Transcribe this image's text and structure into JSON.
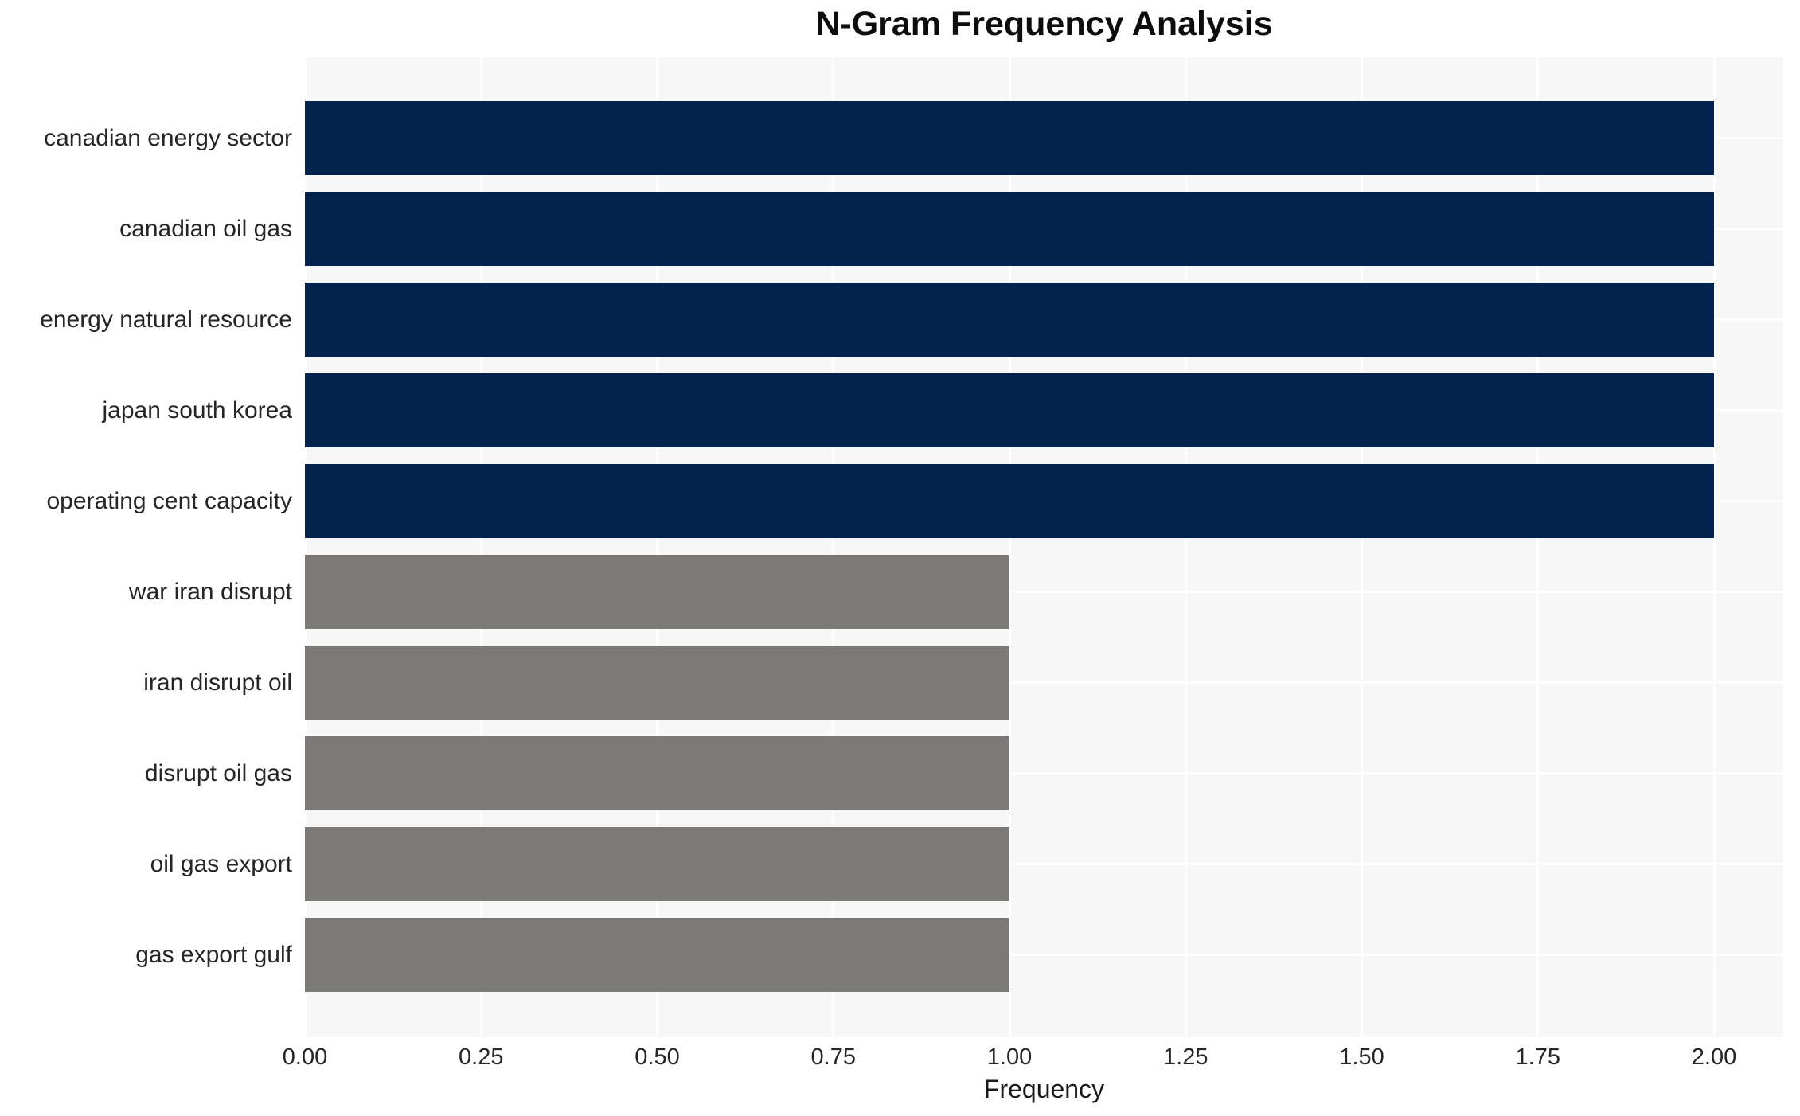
{
  "chart_data": {
    "type": "bar",
    "orientation": "horizontal",
    "title": "N-Gram Frequency Analysis",
    "xlabel": "Frequency",
    "ylabel": "",
    "categories": [
      "canadian energy sector",
      "canadian oil gas",
      "energy natural resource",
      "japan south korea",
      "operating cent capacity",
      "war iran disrupt",
      "iran disrupt oil",
      "disrupt oil gas",
      "oil gas export",
      "gas export gulf"
    ],
    "values": [
      2,
      2,
      2,
      2,
      2,
      1,
      1,
      1,
      1,
      1
    ],
    "bar_colors": [
      "#02234E",
      "#02234E",
      "#02234E",
      "#02234E",
      "#02234E",
      "#7B7A77",
      "#7B7A77",
      "#7B7A77",
      "#7B7A77",
      "#7B7A77"
    ],
    "xlim": [
      0,
      2.1
    ],
    "xticks": [
      {
        "label": "0.00",
        "value": 0.0
      },
      {
        "label": "0.25",
        "value": 0.25
      },
      {
        "label": "0.50",
        "value": 0.5
      },
      {
        "label": "0.75",
        "value": 0.75
      },
      {
        "label": "1.00",
        "value": 1.0
      },
      {
        "label": "1.25",
        "value": 1.25
      },
      {
        "label": "1.50",
        "value": 1.5
      },
      {
        "label": "1.75",
        "value": 1.75
      },
      {
        "label": "2.00",
        "value": 2.0
      }
    ],
    "grid": "on",
    "legend": "none",
    "colors": {
      "primary_bar": "#02234E",
      "secondary_bar": "#7B7A77",
      "plot_background": "#F7F7F7",
      "page_background": "#FFFFFF",
      "gridline": "#FFFFFF",
      "text": "#262626"
    }
  }
}
